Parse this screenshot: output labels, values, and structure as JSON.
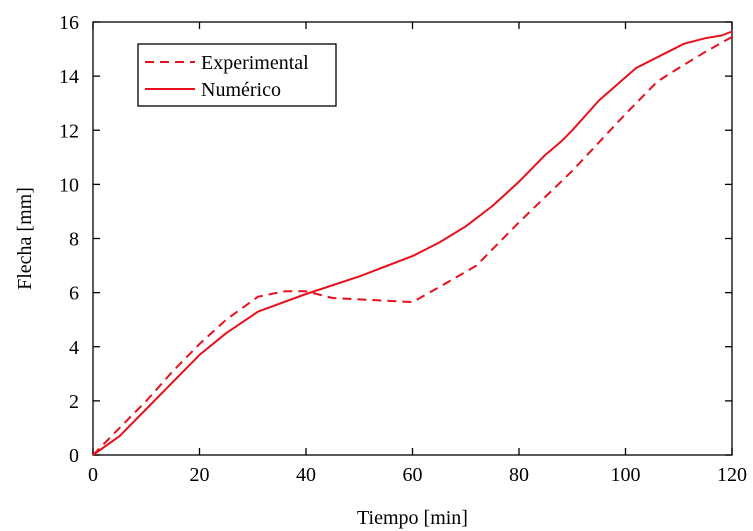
{
  "chart_data": {
    "type": "line",
    "xlabel": "Tiempo [min]",
    "ylabel": "Flecha [mm]",
    "xlim": [
      0,
      120
    ],
    "ylim": [
      0,
      16
    ],
    "x_ticks": [
      0,
      20,
      40,
      60,
      80,
      100,
      120
    ],
    "y_ticks": [
      0,
      2,
      4,
      6,
      8,
      10,
      12,
      14,
      16
    ],
    "grid": false,
    "legend_position": "top-left",
    "series": [
      {
        "name": "Experimental",
        "style": "dashed",
        "color": "#e8101c",
        "x": [
          0,
          5,
          10,
          15,
          20,
          25,
          31,
          36,
          40,
          45,
          50,
          55,
          60,
          65,
          72,
          80,
          90,
          100,
          106,
          110,
          115,
          120
        ],
        "y": [
          0,
          1.0,
          2.0,
          3.1,
          4.1,
          5.0,
          5.85,
          6.05,
          6.05,
          5.8,
          5.75,
          5.7,
          5.65,
          6.2,
          7.0,
          8.6,
          10.5,
          12.6,
          13.8,
          14.3,
          14.9,
          15.45
        ]
      },
      {
        "name": "Numérico",
        "style": "solid",
        "color": "#e8101c",
        "x": [
          0,
          5,
          10,
          15,
          20,
          25,
          31,
          40,
          50,
          60,
          65,
          70,
          75,
          80,
          85,
          88,
          90,
          95,
          102,
          106,
          111,
          115,
          118,
          120
        ],
        "y": [
          0,
          0.7,
          1.7,
          2.7,
          3.7,
          4.5,
          5.3,
          5.95,
          6.6,
          7.35,
          7.85,
          8.45,
          9.2,
          10.1,
          11.1,
          11.6,
          12.0,
          13.1,
          14.3,
          14.7,
          15.2,
          15.4,
          15.5,
          15.65
        ]
      }
    ]
  }
}
